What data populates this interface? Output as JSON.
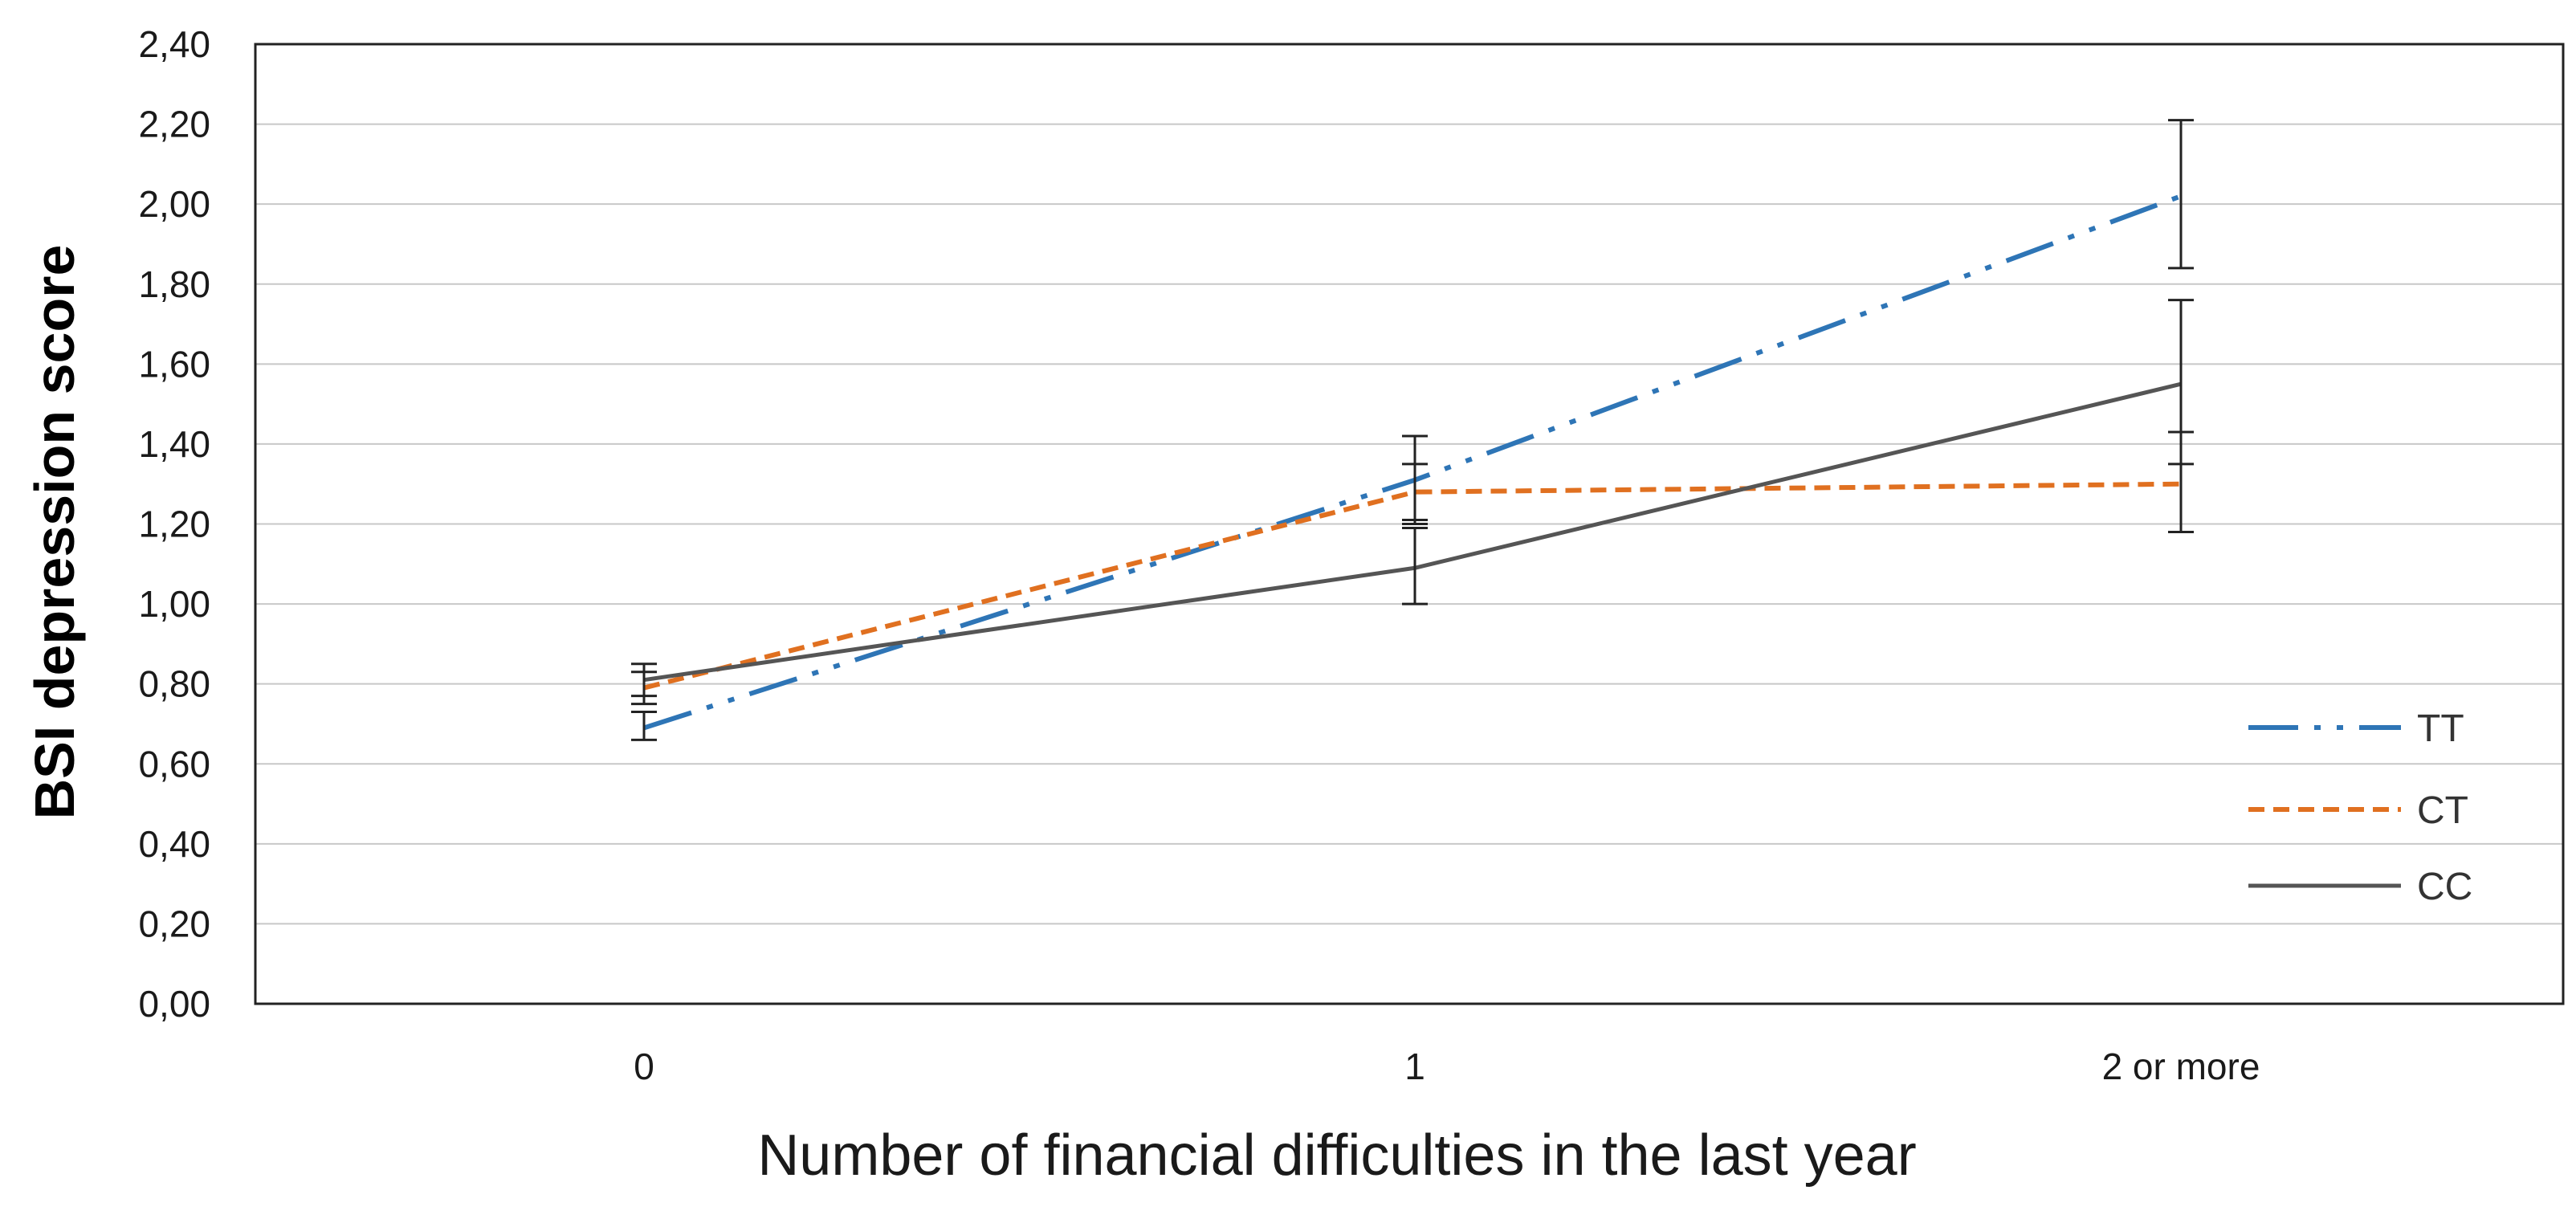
{
  "chart_data": {
    "type": "line",
    "categories": [
      "0",
      "1",
      "2 or more"
    ],
    "xlabel": "Number of financial difficulties in the last year",
    "ylabel": "BSI depression score",
    "ylim": [
      0,
      2.4
    ],
    "yticks": [
      "0,00",
      "0,20",
      "0,40",
      "0,60",
      "0,80",
      "1,00",
      "1,20",
      "1,40",
      "1,60",
      "1,80",
      "2,00",
      "2,20",
      "2,40"
    ],
    "grid": true,
    "legend_position": "bottom-right",
    "series": [
      {
        "name": "TT",
        "color": "#2e75b6",
        "style": "dash-dot-dot",
        "values": [
          0.69,
          1.31,
          2.02
        ],
        "error_low": [
          0.66,
          1.21,
          1.84
        ],
        "error_high": [
          0.73,
          1.42,
          2.21
        ]
      },
      {
        "name": "CT",
        "color": "#e07020",
        "style": "dashed",
        "values": [
          0.79,
          1.28,
          1.3
        ],
        "error_low": [
          0.75,
          1.2,
          1.18
        ],
        "error_high": [
          0.83,
          1.35,
          1.43
        ]
      },
      {
        "name": "CC",
        "color": "#555555",
        "style": "solid",
        "values": [
          0.81,
          1.09,
          1.55
        ],
        "error_low": [
          0.77,
          1.0,
          1.35
        ],
        "error_high": [
          0.85,
          1.19,
          1.76
        ]
      }
    ]
  }
}
